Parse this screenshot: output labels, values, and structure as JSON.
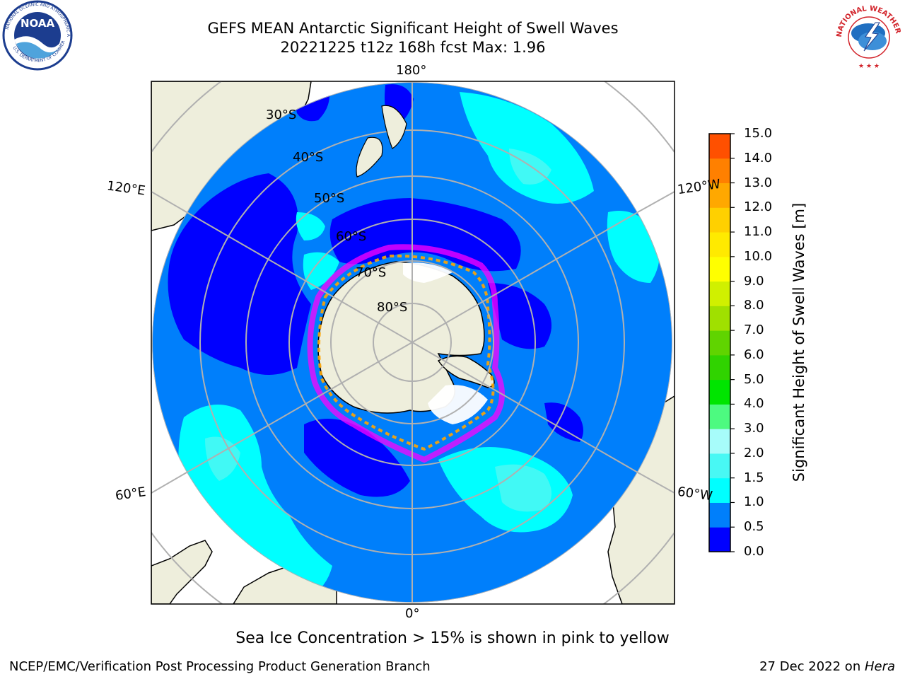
{
  "title_line1": "GEFS MEAN Antarctic Significant Height of Swell Waves",
  "title_line2": "20221225 t12z 168h fcst   Max: 1.96",
  "logos": {
    "left": "NOAA",
    "right": "NATIONAL WEATHER SERVICE"
  },
  "map": {
    "projection": "south-polar-stereographic",
    "longitude_labels": [
      "180°",
      "120°E",
      "120°W",
      "60°E",
      "60°W",
      "0°"
    ],
    "latitude_labels": [
      "30°S",
      "40°S",
      "50°S",
      "60°S",
      "70°S",
      "80°S"
    ],
    "colors": {
      "land": "#eeeedc",
      "ocean_0_5": "#0000ff",
      "ocean_0_5_1_0": "#007ffb",
      "ocean_1_0_1_5": "#00ffff",
      "ocean_1_5_2_0": "#48f8f4",
      "sea_ice": [
        "#ff00ff",
        "#ffa500",
        "#ffff00"
      ],
      "grid": "#b0b0b0"
    }
  },
  "colorbar": {
    "label": "Significant Height of Swell Waves [m]",
    "ticks": [
      "15.0",
      "14.0",
      "13.0",
      "12.0",
      "11.0",
      "10.0",
      "9.0",
      "8.0",
      "7.0",
      "6.0",
      "5.0",
      "4.0",
      "3.0",
      "2.0",
      "1.5",
      "1.0",
      "0.5",
      "0.0"
    ],
    "colors": [
      "#0000ff",
      "#007ffb",
      "#00ffff",
      "#48f8f4",
      "#a7fcfa",
      "#4dfa80",
      "#00e500",
      "#30d300",
      "#60d400",
      "#a0e000",
      "#d0f000",
      "#ffff00",
      "#ffea00",
      "#ffd000",
      "#ffa800",
      "#ff8000",
      "#ff5000",
      "#ff2000",
      "#ff0000"
    ]
  },
  "note": "Sea Ice Concentration > 15% is shown in pink to yellow",
  "footer": {
    "left": "NCEP/EMC/Verification Post Processing Product Generation Branch",
    "date": "27 Dec 2022 on ",
    "machine": "Hera"
  }
}
